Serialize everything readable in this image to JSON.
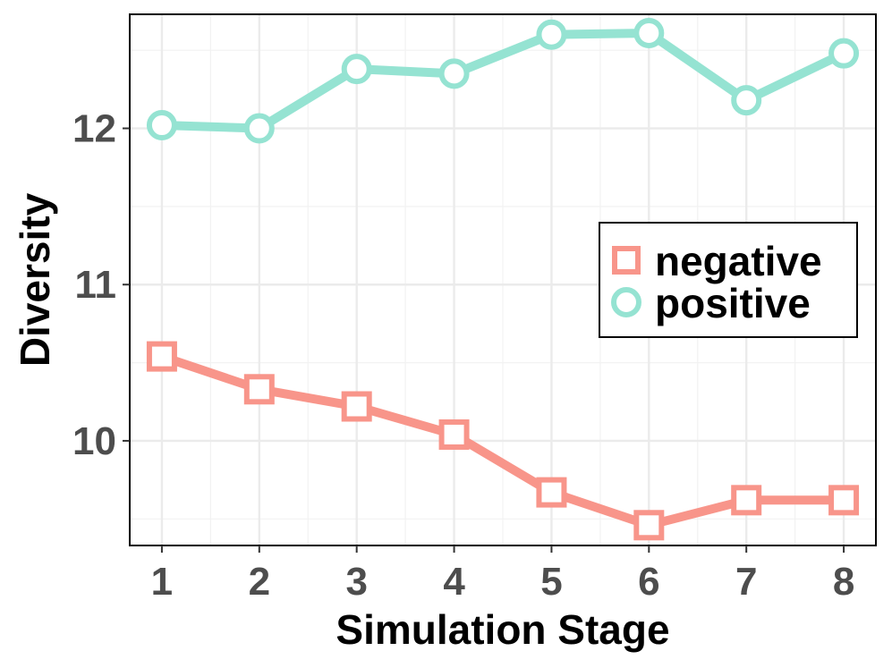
{
  "chart_data": {
    "type": "line",
    "title": "",
    "xlabel": "Simulation Stage",
    "ylabel": "Diversity",
    "x": [
      1,
      2,
      3,
      4,
      5,
      6,
      7,
      8
    ],
    "xlim": [
      0.67,
      8.33
    ],
    "ylim": [
      9.33,
      12.73
    ],
    "yticks": [
      10,
      11,
      12
    ],
    "grid": true,
    "legend_position": "right",
    "series": [
      {
        "name": "negative",
        "marker": "square",
        "color": "#F8958A",
        "values": [
          10.54,
          10.33,
          10.22,
          10.04,
          9.67,
          9.46,
          9.62,
          9.62
        ]
      },
      {
        "name": "positive",
        "marker": "circle",
        "color": "#95E3D2",
        "values": [
          12.02,
          12.0,
          12.38,
          12.35,
          12.6,
          12.61,
          12.18,
          12.48
        ]
      }
    ]
  }
}
